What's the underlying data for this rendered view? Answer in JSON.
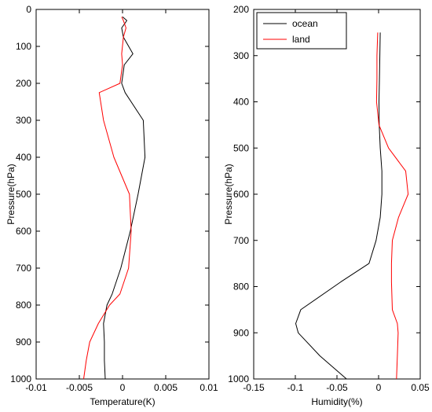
{
  "colors": {
    "ocean": "#000000",
    "land": "#ff0000"
  },
  "chart_data": [
    {
      "type": "line",
      "xlabel": "Temperature(K)",
      "ylabel": "Pressure(hPa)",
      "xlim": [
        -0.01,
        0.01
      ],
      "ylim": [
        1000,
        0
      ],
      "y_reversed": true,
      "xticks": [
        -0.01,
        -0.005,
        0,
        0.005,
        0.01
      ],
      "xtick_labels": [
        "-0.01",
        "-0.005",
        "0",
        "0.005",
        "0.01"
      ],
      "yticks": [
        0,
        100,
        200,
        300,
        400,
        500,
        600,
        700,
        800,
        900,
        1000
      ],
      "ytick_labels": [
        "0",
        "100",
        "200",
        "300",
        "400",
        "500",
        "600",
        "700",
        "800",
        "900",
        "1000"
      ],
      "grid": false,
      "series": [
        {
          "key": "ocean",
          "x": [
            0.0,
            0.0005,
            -0.0001,
            0.0001,
            0.0012,
            0.0002,
            -0.0001,
            0.0003,
            0.0024,
            0.0026,
            0.0018,
            0.0009,
            -0.0002,
            -0.0012,
            -0.0018,
            -0.0022,
            -0.0021,
            -0.0021,
            -0.002
          ],
          "y": [
            20,
            30,
            50,
            75,
            120,
            150,
            200,
            225,
            300,
            400,
            500,
            600,
            700,
            770,
            800,
            850,
            900,
            950,
            1000
          ]
        },
        {
          "key": "land",
          "x": [
            -0.0001,
            0.0001,
            0.0004,
            0.0001,
            -0.0001,
            0.0,
            -0.0003,
            -0.0027,
            -0.0022,
            -0.001,
            0.0008,
            0.001,
            0.0007,
            -0.0003,
            -0.0015,
            -0.0028,
            -0.0038,
            -0.0042,
            -0.0045
          ],
          "y": [
            20,
            30,
            50,
            75,
            120,
            150,
            200,
            225,
            300,
            400,
            500,
            600,
            700,
            770,
            800,
            850,
            900,
            950,
            1000
          ]
        }
      ]
    },
    {
      "type": "line",
      "xlabel": "Humidity(%)",
      "ylabel": "Pressure(hPa)",
      "xlim": [
        -0.15,
        0.05
      ],
      "ylim": [
        1000,
        200
      ],
      "y_reversed": true,
      "xticks": [
        -0.15,
        -0.1,
        -0.05,
        0,
        0.05
      ],
      "xtick_labels": [
        "-0.15",
        "-0.1",
        "-0.05",
        "0",
        "0.05"
      ],
      "yticks": [
        200,
        300,
        400,
        500,
        600,
        700,
        800,
        900,
        1000
      ],
      "ytick_labels": [
        "200",
        "300",
        "400",
        "500",
        "600",
        "700",
        "800",
        "900",
        "1000"
      ],
      "grid": false,
      "legend": {
        "position": "top-left",
        "entries": [
          "ocean",
          "land"
        ]
      },
      "series": [
        {
          "key": "ocean",
          "name": "ocean",
          "x": [
            0.002,
            0.0015,
            0.001,
            0.0005,
            0.0008,
            0.002,
            0.004,
            0.004,
            0.002,
            -0.003,
            -0.0115,
            -0.0455,
            -0.0935,
            -0.0995,
            -0.0965,
            -0.0705,
            -0.0385
          ],
          "y": [
            250,
            300,
            350,
            400,
            450,
            500,
            550,
            600,
            650,
            700,
            750,
            790,
            850,
            880,
            900,
            950,
            1000
          ]
        },
        {
          "key": "land",
          "name": "land",
          "x": [
            -0.001,
            -0.002,
            -0.002,
            -0.0025,
            0.0005,
            0.012,
            0.0325,
            0.0355,
            0.024,
            0.0165,
            0.0155,
            0.0155,
            0.0165,
            0.0225,
            0.0235,
            0.0225,
            0.0215
          ],
          "y": [
            250,
            300,
            350,
            400,
            450,
            500,
            550,
            600,
            650,
            700,
            750,
            790,
            850,
            880,
            900,
            950,
            1000
          ]
        }
      ]
    }
  ]
}
